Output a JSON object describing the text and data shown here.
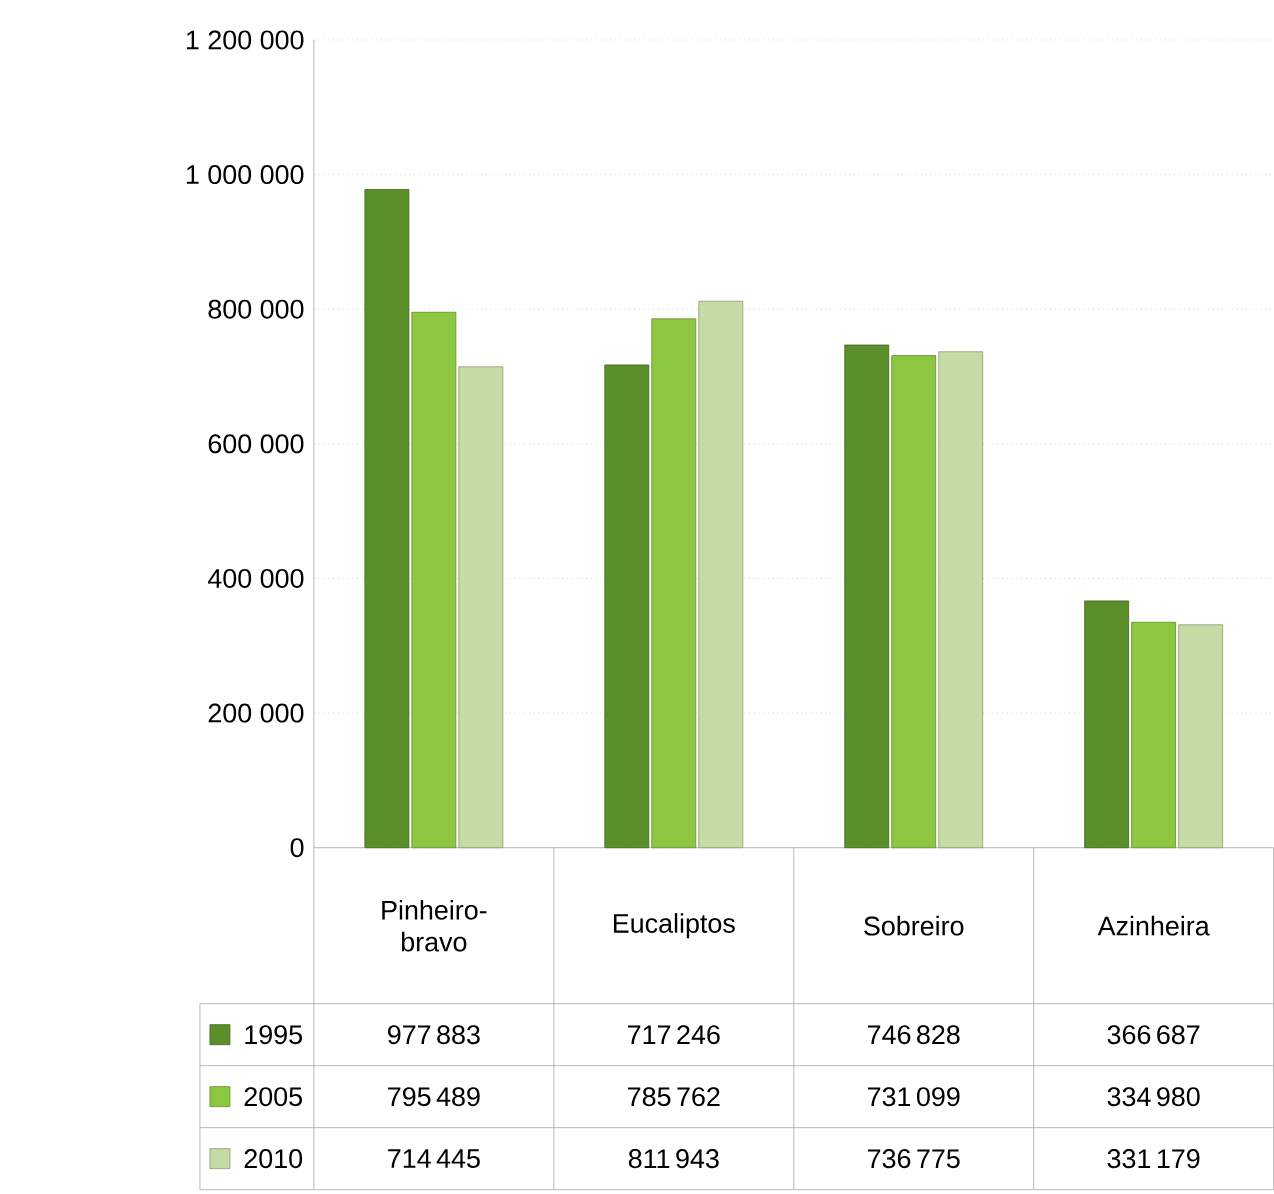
{
  "chart_data": {
    "type": "bar",
    "categories": [
      "Pinheiro-bravo",
      "Eucaliptos",
      "Sobreiro",
      "Azinheira"
    ],
    "series": [
      {
        "name": "1995",
        "color": "#5a8f29",
        "values": [
          977883,
          717246,
          746828,
          366687
        ]
      },
      {
        "name": "2005",
        "color": "#8dc63f",
        "values": [
          795489,
          785762,
          731099,
          334980
        ]
      },
      {
        "name": "2010",
        "color": "#c6dca4",
        "values": [
          714445,
          811943,
          736775,
          331179
        ]
      }
    ],
    "ylim": [
      0,
      1200000
    ],
    "yticks": [
      {
        "value": 0,
        "label": "0"
      },
      {
        "value": 200000,
        "label": "200 000"
      },
      {
        "value": 400000,
        "label": "400 000"
      },
      {
        "value": 600000,
        "label": "600 000"
      },
      {
        "value": 800000,
        "label": "800 000"
      },
      {
        "value": 1000000,
        "label": "1 000 000"
      },
      {
        "value": 1200000,
        "label": "1 200 000"
      }
    ],
    "grid": "y",
    "data_labels": true,
    "legend": "bottom"
  }
}
